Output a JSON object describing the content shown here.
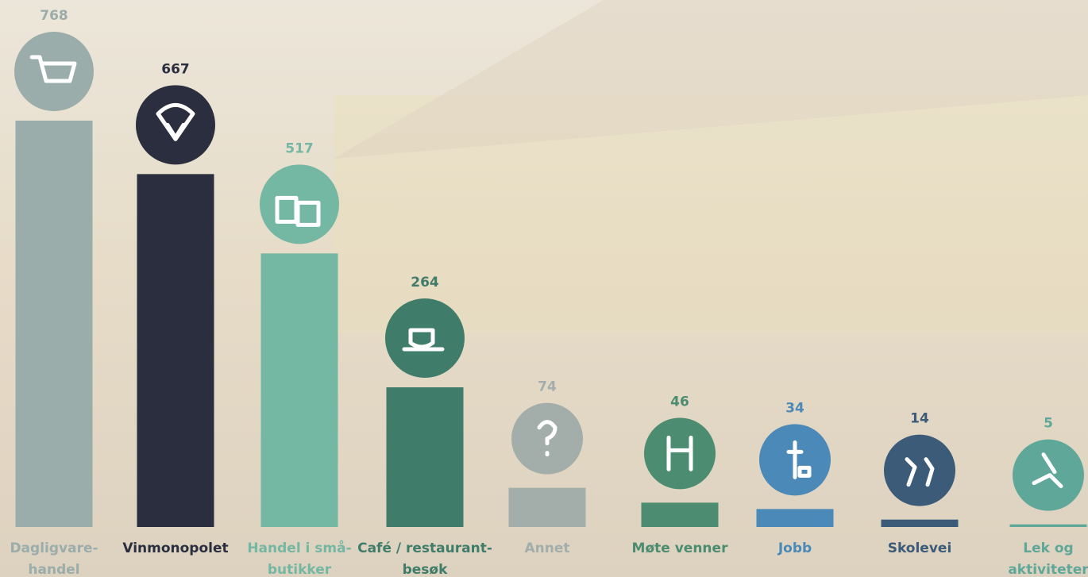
{
  "chart_data": {
    "type": "bar",
    "categories": [
      [
        "Dagligvare-",
        "handel"
      ],
      [
        "Vinmonopolet"
      ],
      [
        "Handel i små-",
        "butikker"
      ],
      [
        "Café / restaurant-",
        "besøk"
      ],
      [
        "Annet"
      ],
      [
        "Møte venner"
      ],
      [
        "Jobb"
      ],
      [
        "Skolevei"
      ],
      [
        "Lek og",
        "aktiviteter"
      ]
    ],
    "values": [
      768,
      667,
      517,
      264,
      74,
      46,
      34,
      14,
      5
    ],
    "colors": [
      "#9aadaa",
      "#2b2e3f",
      "#74b7a3",
      "#3f7c6a",
      "#a3aeab",
      "#4c8c70",
      "#4b89b9",
      "#3b5b79",
      "#5fa899"
    ]
  }
}
